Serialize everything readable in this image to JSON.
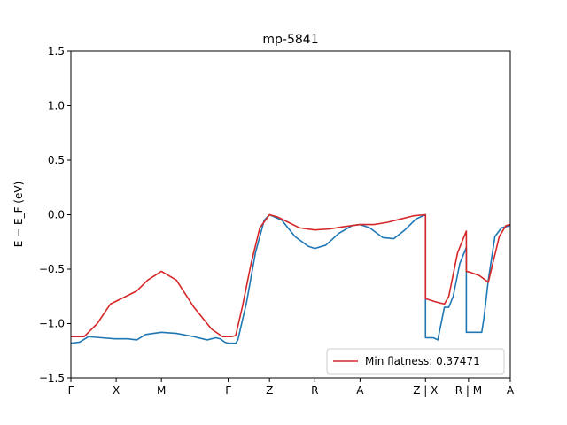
{
  "chart_data": {
    "type": "line",
    "title": "mp-5841",
    "ylabel": "E − E_F (eV)",
    "xlim": [
      0,
      10
    ],
    "ylim": [
      -1.5,
      1.5
    ],
    "yticks": [
      -1.5,
      -1.0,
      -0.5,
      0.0,
      0.5,
      1.0,
      1.5
    ],
    "ytick_labels": [
      "−1.5",
      "−1.0",
      "−0.5",
      "0.0",
      "0.5",
      "1.0",
      "1.5"
    ],
    "xticks": [
      0,
      1.03,
      2.06,
      3.58,
      4.52,
      5.55,
      6.58,
      8.07,
      9.05,
      10
    ],
    "xtick_labels": [
      "Γ",
      "X",
      "M",
      "Γ",
      "Z",
      "R",
      "A",
      "Z | X",
      "R | M",
      "A"
    ],
    "legend": {
      "location": "lower-right",
      "entries": [
        "Min flatness: 0.37471"
      ]
    },
    "colors": {
      "red": "#d62728",
      "blue": "#1f77b4"
    },
    "series": [
      {
        "name": "Min flatness: 0.37471",
        "color": "#d62728",
        "x": [
          0,
          0.3,
          0.6,
          0.9,
          1.2,
          1.5,
          1.75,
          2.06,
          2.4,
          2.8,
          3.2,
          3.45,
          3.58,
          3.65,
          3.75,
          3.9,
          4.1,
          4.3,
          4.52,
          4.7,
          4.9,
          5.2,
          5.55,
          5.9,
          6.2,
          6.58,
          6.9,
          7.2,
          7.5,
          7.8,
          8.07,
          8.07,
          8.3,
          8.5,
          8.6,
          8.8,
          8.95,
          9.0,
          9.0,
          9.1,
          9.3,
          9.5,
          9.6,
          9.75,
          9.9,
          10.0
        ],
        "y": [
          -1.12,
          -1.12,
          -1.0,
          -0.82,
          -0.76,
          -0.7,
          -0.6,
          -0.52,
          -0.6,
          -0.85,
          -1.05,
          -1.12,
          -1.12,
          -1.12,
          -1.11,
          -0.85,
          -0.45,
          -0.12,
          0.0,
          -0.02,
          -0.06,
          -0.12,
          -0.14,
          -0.13,
          -0.11,
          -0.09,
          -0.09,
          -0.07,
          -0.04,
          -0.01,
          0.0,
          -0.77,
          -0.8,
          -0.82,
          -0.75,
          -0.35,
          -0.2,
          -0.15,
          -0.52,
          -0.53,
          -0.56,
          -0.62,
          -0.45,
          -0.2,
          -0.1,
          -0.09
        ]
      },
      {
        "name": "",
        "color": "#1f77b4",
        "x": [
          0,
          0.2,
          0.4,
          0.7,
          1.0,
          1.3,
          1.5,
          1.7,
          2.06,
          2.4,
          2.8,
          3.1,
          3.3,
          3.4,
          3.5,
          3.58,
          3.75,
          3.8,
          4.0,
          4.2,
          4.4,
          4.52,
          4.8,
          5.1,
          5.4,
          5.55,
          5.8,
          6.1,
          6.4,
          6.58,
          6.8,
          7.1,
          7.35,
          7.6,
          7.85,
          8.07,
          8.07,
          8.15,
          8.25,
          8.35,
          8.5,
          8.6,
          8.7,
          8.85,
          9.0,
          9.0,
          9.15,
          9.35,
          9.4,
          9.5,
          9.65,
          9.8,
          10.0
        ],
        "y": [
          -1.18,
          -1.17,
          -1.12,
          -1.13,
          -1.14,
          -1.14,
          -1.15,
          -1.1,
          -1.08,
          -1.09,
          -1.12,
          -1.15,
          -1.13,
          -1.14,
          -1.17,
          -1.18,
          -1.18,
          -1.15,
          -0.8,
          -0.35,
          -0.05,
          0.0,
          -0.05,
          -0.2,
          -0.29,
          -0.31,
          -0.28,
          -0.17,
          -0.1,
          -0.09,
          -0.12,
          -0.21,
          -0.22,
          -0.14,
          -0.04,
          0.0,
          -1.13,
          -1.13,
          -1.13,
          -1.15,
          -0.85,
          -0.85,
          -0.75,
          -0.45,
          -0.3,
          -1.08,
          -1.08,
          -1.08,
          -0.95,
          -0.6,
          -0.2,
          -0.12,
          -0.1
        ]
      }
    ]
  }
}
